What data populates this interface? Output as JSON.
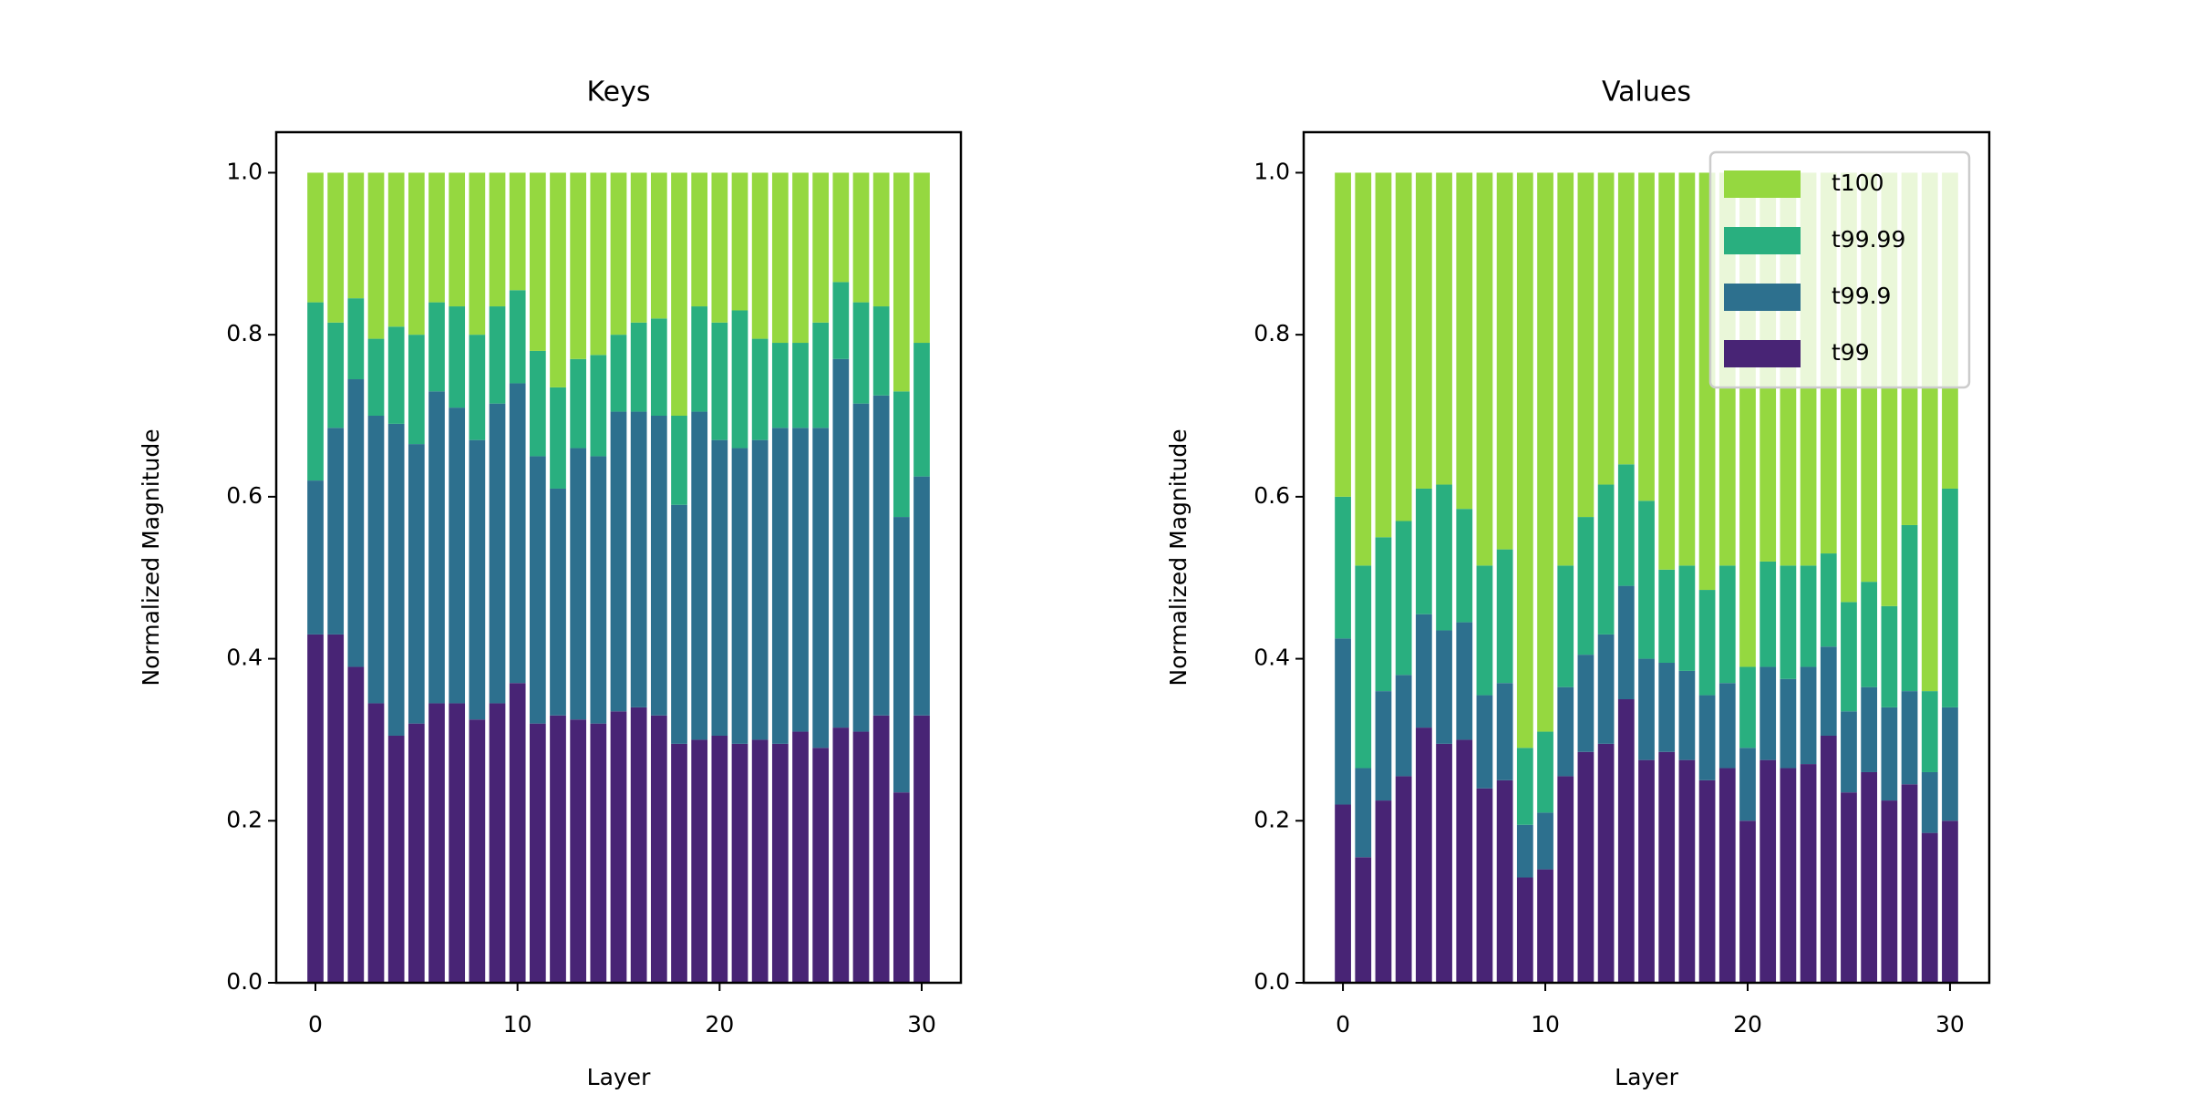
{
  "chart_data": [
    {
      "type": "stacked-bar",
      "title": "Keys",
      "x_label": "Layer",
      "y_label": "Normalized Magnitude",
      "x": [
        0,
        1,
        2,
        3,
        4,
        5,
        6,
        7,
        8,
        9,
        10,
        11,
        12,
        13,
        14,
        15,
        16,
        17,
        18,
        19,
        20,
        21,
        22,
        23,
        24,
        25,
        26,
        27,
        28,
        29,
        30
      ],
      "series": [
        {
          "color": "#482475",
          "values": [
            0.43,
            0.43,
            0.39,
            0.345,
            0.305,
            0.32,
            0.345,
            0.345,
            0.325,
            0.345,
            0.37,
            0.32,
            0.33,
            0.325,
            0.32,
            0.335,
            0.34,
            0.33,
            0.295,
            0.3,
            0.305,
            0.295,
            0.3,
            0.295,
            0.31,
            0.29,
            0.315,
            0.31,
            0.33,
            0.235,
            0.33
          ]
        },
        {
          "color": "#2d708e",
          "values": [
            0.19,
            0.255,
            0.355,
            0.355,
            0.385,
            0.345,
            0.385,
            0.365,
            0.345,
            0.37,
            0.37,
            0.33,
            0.28,
            0.335,
            0.33,
            0.37,
            0.365,
            0.37,
            0.295,
            0.405,
            0.365,
            0.365,
            0.37,
            0.39,
            0.375,
            0.395,
            0.455,
            0.405,
            0.395,
            0.34,
            0.295
          ]
        },
        {
          "color": "#29af7f",
          "values": [
            0.22,
            0.13,
            0.1,
            0.095,
            0.12,
            0.135,
            0.11,
            0.125,
            0.13,
            0.12,
            0.115,
            0.13,
            0.125,
            0.11,
            0.125,
            0.095,
            0.11,
            0.12,
            0.11,
            0.13,
            0.145,
            0.17,
            0.125,
            0.105,
            0.105,
            0.13,
            0.095,
            0.125,
            0.11,
            0.155,
            0.165
          ]
        },
        {
          "color": "#95d840",
          "values": [
            0.16,
            0.185,
            0.155,
            0.205,
            0.19,
            0.2,
            0.16,
            0.165,
            0.2,
            0.165,
            0.145,
            0.22,
            0.265,
            0.23,
            0.225,
            0.2,
            0.185,
            0.18,
            0.3,
            0.165,
            0.185,
            0.17,
            0.205,
            0.21,
            0.21,
            0.185,
            0.135,
            0.16,
            0.165,
            0.27,
            0.21
          ]
        }
      ],
      "xlim": [
        -1.94,
        31.94
      ],
      "xticks": [
        0,
        10,
        20,
        30
      ],
      "ylim": [
        0,
        1.05
      ],
      "yticks": [
        {
          "value": 0,
          "label": "0.0"
        },
        0.2,
        0.4,
        0.6,
        0.8,
        {
          "value": 1,
          "label": "1.0"
        }
      ]
    },
    {
      "type": "stacked-bar",
      "title": "Values",
      "x_label": "Layer",
      "y_label": "Normalized Magnitude",
      "x": [
        0,
        1,
        2,
        3,
        4,
        5,
        6,
        7,
        8,
        9,
        10,
        11,
        12,
        13,
        14,
        15,
        16,
        17,
        18,
        19,
        20,
        21,
        22,
        23,
        24,
        25,
        26,
        27,
        28,
        29,
        30
      ],
      "series": [
        {
          "name": "t99",
          "color": "#482475",
          "values": [
            0.22,
            0.155,
            0.225,
            0.255,
            0.315,
            0.295,
            0.3,
            0.24,
            0.25,
            0.13,
            0.14,
            0.255,
            0.285,
            0.295,
            0.35,
            0.275,
            0.285,
            0.275,
            0.25,
            0.265,
            0.2,
            0.275,
            0.265,
            0.27,
            0.305,
            0.235,
            0.26,
            0.225,
            0.245,
            0.185,
            0.2
          ]
        },
        {
          "name": "t99.9",
          "color": "#2d708e",
          "values": [
            0.205,
            0.11,
            0.135,
            0.125,
            0.14,
            0.14,
            0.145,
            0.115,
            0.12,
            0.065,
            0.07,
            0.11,
            0.12,
            0.135,
            0.14,
            0.125,
            0.11,
            0.11,
            0.105,
            0.105,
            0.09,
            0.115,
            0.11,
            0.12,
            0.11,
            0.1,
            0.105,
            0.115,
            0.115,
            0.075,
            0.14
          ]
        },
        {
          "name": "t99.99",
          "color": "#29af7f",
          "values": [
            0.175,
            0.25,
            0.19,
            0.19,
            0.155,
            0.18,
            0.14,
            0.16,
            0.165,
            0.095,
            0.1,
            0.15,
            0.17,
            0.185,
            0.15,
            0.195,
            0.115,
            0.13,
            0.13,
            0.145,
            0.1,
            0.13,
            0.14,
            0.125,
            0.115,
            0.135,
            0.13,
            0.125,
            0.205,
            0.1,
            0.27
          ]
        },
        {
          "name": "t100",
          "color": "#95d840",
          "values": [
            0.4,
            0.485,
            0.45,
            0.43,
            0.39,
            0.385,
            0.415,
            0.485,
            0.465,
            0.71,
            0.69,
            0.485,
            0.425,
            0.385,
            0.36,
            0.405,
            0.49,
            0.485,
            0.515,
            0.485,
            0.61,
            0.48,
            0.485,
            0.485,
            0.47,
            0.53,
            0.505,
            0.535,
            0.435,
            0.64,
            0.39
          ]
        }
      ],
      "xlim": [
        -1.94,
        31.94
      ],
      "xticks": [
        0,
        10,
        20,
        30
      ],
      "ylim": [
        0,
        1.05
      ],
      "yticks": [
        {
          "value": 0,
          "label": "0.0"
        },
        0.2,
        0.4,
        0.6,
        0.8,
        {
          "value": 1,
          "label": "1.0"
        }
      ],
      "legend": "upper right"
    }
  ]
}
